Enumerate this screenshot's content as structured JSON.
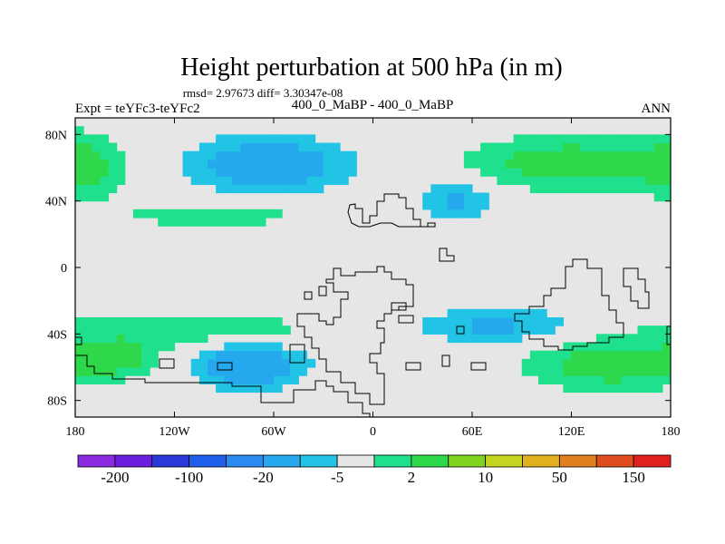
{
  "chart_data": {
    "type": "heatmap",
    "title": "Height perturbation at 500 hPa (in m)",
    "stats": "rmsd= 2.97673 diff= 3.30347e-08",
    "left_label": "Expt = teYFc3-teYFc2",
    "center_label": "400_0_MaBP - 400_0_MaBP",
    "right_label": "ANN",
    "x_range": [
      -180,
      180
    ],
    "y_range": [
      -90,
      90
    ],
    "x_ticks": [
      {
        "value": -180,
        "label": "180"
      },
      {
        "value": -120,
        "label": "120W"
      },
      {
        "value": -60,
        "label": "60W"
      },
      {
        "value": 0,
        "label": "0"
      },
      {
        "value": 60,
        "label": "60E"
      },
      {
        "value": 120,
        "label": "120E"
      },
      {
        "value": 180,
        "label": "180"
      }
    ],
    "y_ticks": [
      {
        "value": 80,
        "label": "80N"
      },
      {
        "value": 40,
        "label": "40N"
      },
      {
        "value": 0,
        "label": "0"
      },
      {
        "value": -40,
        "label": "40S"
      },
      {
        "value": -80,
        "label": "80S"
      }
    ],
    "colorbar": {
      "colors": [
        "#8a2be2",
        "#6a1fe0",
        "#2a38d8",
        "#1f5ee8",
        "#2a8af0",
        "#26a8ee",
        "#22c4e6",
        "#e6e6e6",
        "#1fe08c",
        "#2fd84a",
        "#7fd41f",
        "#c4d41f",
        "#e0b01f",
        "#e0801f",
        "#e04e1f",
        "#e01f1f"
      ],
      "labels": [
        {
          "boundary": 1,
          "text": "-200"
        },
        {
          "boundary": 3,
          "text": "-100"
        },
        {
          "boundary": 5,
          "text": "-20"
        },
        {
          "boundary": 7,
          "text": "-5"
        },
        {
          "boundary": 9,
          "text": "2"
        },
        {
          "boundary": 11,
          "text": "10"
        },
        {
          "boundary": 13,
          "text": "50"
        },
        {
          "boundary": 15,
          "text": "150"
        }
      ]
    },
    "features": [
      {
        "name": "nh-low-west",
        "lon": -63,
        "lat": 62,
        "rlon": 48,
        "rlat": 17,
        "value": -12
      },
      {
        "name": "nh-low-central",
        "lon": 50,
        "lat": 40,
        "rlon": 25,
        "rlat": 12,
        "value": -8
      },
      {
        "name": "nh-high-east",
        "lon": 120,
        "lat": 63,
        "rlon": 60,
        "rlat": 15,
        "value": 9
      },
      {
        "name": "nh-high-west",
        "lon": -175,
        "lat": 60,
        "rlon": 22,
        "rlat": 20,
        "value": 7
      },
      {
        "name": "nh-high-band",
        "lon": -95,
        "lat": 32,
        "rlon": 50,
        "rlat": 7,
        "value": 6
      },
      {
        "name": "sh-low-west",
        "lon": -75,
        "lat": -58,
        "rlon": 35,
        "rlat": 15,
        "value": -12
      },
      {
        "name": "sh-low-central",
        "lon": 75,
        "lat": -35,
        "rlon": 55,
        "rlat": 11,
        "value": -8
      },
      {
        "name": "sh-high-west",
        "lon": -110,
        "lat": -38,
        "rlon": 85,
        "rlat": 11,
        "value": 6
      },
      {
        "name": "sh-high-west2",
        "lon": -155,
        "lat": -55,
        "rlon": 25,
        "rlat": 10,
        "value": 7
      },
      {
        "name": "sh-high-east",
        "lon": 145,
        "lat": -58,
        "rlon": 50,
        "rlat": 15,
        "value": 9
      }
    ]
  }
}
